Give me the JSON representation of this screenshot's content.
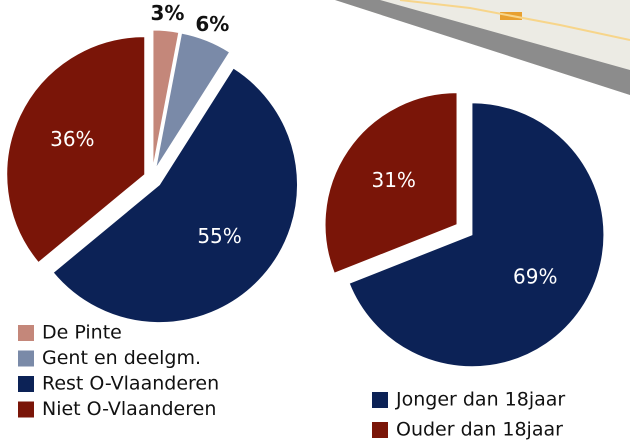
{
  "chart_data": [
    {
      "type": "pie",
      "categories": [
        "De Pinte",
        "Gent en deelgm.",
        "Rest O-Vlaanderen",
        "Niet O-Vlaanderen"
      ],
      "values": [
        3,
        6,
        55,
        36
      ],
      "value_labels": [
        "3%",
        "6%",
        "55%",
        "36%"
      ],
      "colors": [
        "#c4877a",
        "#7a8aa8",
        "#0c2256",
        "#7a1508"
      ]
    },
    {
      "type": "pie",
      "categories": [
        "Jonger dan 18jaar",
        "Ouder dan 18jaar"
      ],
      "values": [
        69,
        31
      ],
      "value_labels": [
        "69%",
        "31%"
      ],
      "colors": [
        "#0c2256",
        "#7a1508"
      ]
    }
  ]
}
